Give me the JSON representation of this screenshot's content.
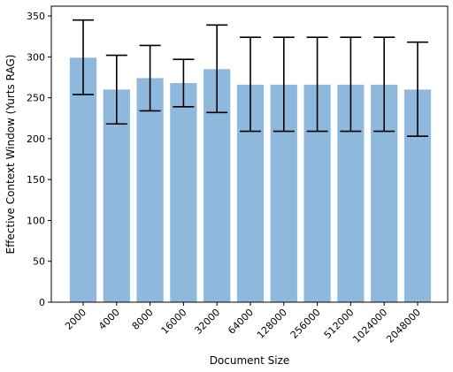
{
  "chart_data": {
    "type": "bar",
    "xlabel": "Document Size",
    "ylabel": "Effective Context Window (Yurts RAG)",
    "categories": [
      "2000",
      "4000",
      "8000",
      "16000",
      "32000",
      "64000",
      "128000",
      "256000",
      "512000",
      "1024000",
      "2048000"
    ],
    "values": [
      299,
      260,
      274,
      268,
      285,
      266,
      266,
      266,
      266,
      266,
      260
    ],
    "error_low": [
      254,
      218,
      234,
      239,
      232,
      209,
      209,
      209,
      209,
      209,
      203
    ],
    "error_high": [
      345,
      302,
      314,
      297,
      339,
      324,
      324,
      324,
      324,
      324,
      318
    ],
    "ylim": [
      0,
      362
    ],
    "yticks": [
      0,
      50,
      100,
      150,
      200,
      250,
      300,
      350
    ],
    "bar_color": "#8fb9dc",
    "error_color": "#000000",
    "grid": false,
    "legend": "none"
  }
}
